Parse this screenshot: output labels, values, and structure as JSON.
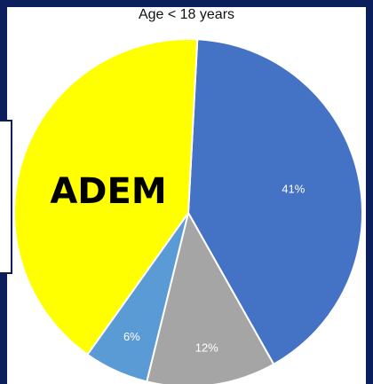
{
  "chart_data": {
    "type": "pie",
    "title": "Age < 18 years",
    "annotation": "ADEM",
    "slices": [
      {
        "label": "41%",
        "value": 41,
        "color": "#4472c4"
      },
      {
        "label": "12%",
        "value": 12,
        "color": "#a5a5a5"
      },
      {
        "label": "6%",
        "value": 6,
        "color": "#5b9bd5"
      },
      {
        "label": "",
        "value": 41,
        "color": "#ffff00"
      }
    ]
  }
}
